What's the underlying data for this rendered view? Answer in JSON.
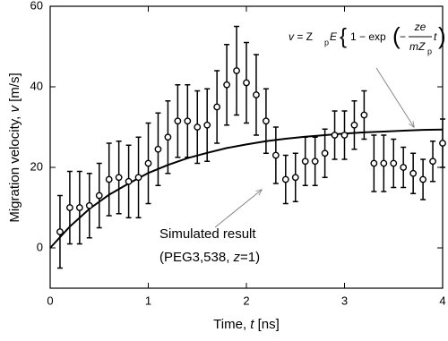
{
  "chart_data": {
    "type": "scatter",
    "xlabel": [
      "Time, ",
      "t",
      " [ns]"
    ],
    "ylabel": [
      "Migration velocity, ",
      "v",
      " [m/s]"
    ],
    "xlim": [
      0,
      4
    ],
    "xticks": [
      0,
      1,
      2,
      3,
      4
    ],
    "ylim": [
      -10,
      60
    ],
    "yticks": [
      0,
      20,
      40,
      60
    ],
    "points": {
      "x": [
        0.1,
        0.2,
        0.3,
        0.4,
        0.5,
        0.6,
        0.7,
        0.8,
        0.9,
        1.0,
        1.1,
        1.2,
        1.3,
        1.4,
        1.5,
        1.6,
        1.7,
        1.8,
        1.9,
        2.0,
        2.1,
        2.2,
        2.3,
        2.4,
        2.5,
        2.6,
        2.7,
        2.8,
        2.9,
        3.0,
        3.1,
        3.2,
        3.3,
        3.4,
        3.5,
        3.6,
        3.7,
        3.8,
        3.9,
        4.0
      ],
      "values": [
        4,
        10,
        10,
        10.5,
        13,
        17,
        17.5,
        16.5,
        17.5,
        21,
        24.5,
        27.5,
        31.5,
        31.5,
        30,
        30.5,
        35,
        40.5,
        44,
        41,
        38,
        31.5,
        23,
        17,
        17.5,
        21.5,
        21.5,
        23.5,
        28,
        28,
        30.5,
        33,
        21,
        21,
        21,
        20,
        18.5,
        17,
        21.5,
        26
      ],
      "errors": [
        9,
        9,
        9,
        8,
        8,
        9,
        9,
        9,
        10,
        10,
        9,
        9,
        9,
        9,
        9,
        9,
        9,
        10,
        11,
        10,
        10,
        8,
        7,
        6,
        6,
        6,
        6,
        6,
        6,
        6,
        6,
        6,
        7,
        7,
        6,
        5,
        5,
        5,
        5,
        6
      ]
    },
    "curve": {
      "x": [
        0,
        0.2,
        0.4,
        0.6,
        0.8,
        1.0,
        1.2,
        1.4,
        1.6,
        1.8,
        2.0,
        2.2,
        2.4,
        2.6,
        2.8,
        3.0,
        3.2,
        3.4,
        3.6,
        3.8,
        4.0
      ],
      "values": [
        0,
        5.3,
        9.7,
        13.2,
        16.0,
        18.6,
        20.6,
        22.3,
        23.6,
        24.8,
        25.7,
        26.5,
        27.1,
        27.6,
        28.0,
        28.4,
        28.7,
        28.9,
        29.1,
        29.3,
        29.4
      ]
    },
    "equation": {
      "lhs": "v",
      "eq": " = Z",
      "sub1": "p",
      "e": "E",
      "one": "1 − exp",
      "minus": "−",
      "num": "ze",
      "den": "mZ",
      "sub2": "p",
      "t": "t"
    },
    "annotation": {
      "line1": "Simulated result",
      "line2a": "(PEG3,538, ",
      "line2b": "z",
      "line2c": "=1)"
    }
  }
}
